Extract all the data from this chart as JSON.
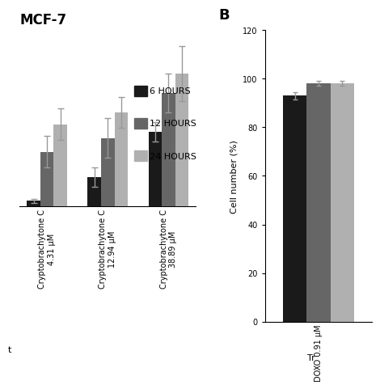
{
  "panel_A": {
    "title": "MCF-7",
    "categories": [
      "Cryptobrachytone C\n4.31 μM",
      "Cryptobrachytone C\n12.94 μM",
      "Cryptobrachytone C\n38.89 μM"
    ],
    "values_6h": [
      3,
      15,
      38
    ],
    "values_12h": [
      28,
      35,
      58
    ],
    "values_24h": [
      42,
      48,
      68
    ],
    "errors_6h": [
      1,
      5,
      5
    ],
    "errors_12h": [
      8,
      10,
      10
    ],
    "errors_24h": [
      8,
      8,
      14
    ],
    "color_6h": "#1a1a1a",
    "color_12h": "#666666",
    "color_24h": "#b0b0b0",
    "ylim": [
      0,
      90
    ],
    "ylabel": ""
  },
  "panel_B": {
    "label": "B",
    "categories": [
      "DOXO 0.91 μM"
    ],
    "values_6h": [
      93
    ],
    "values_12h": [
      98
    ],
    "values_24h": [
      98
    ],
    "errors_6h": [
      1.5
    ],
    "errors_12h": [
      1.0
    ],
    "errors_24h": [
      1.0
    ],
    "color_6h": "#1a1a1a",
    "color_12h": "#666666",
    "color_24h": "#b0b0b0",
    "ylim": [
      0,
      120
    ],
    "ylabel": "Cell number (%)",
    "xlabel": "Tr"
  },
  "legend": {
    "labels": [
      "6 HOURS",
      "12 HOURS",
      "24 HOURS"
    ],
    "colors": [
      "#1a1a1a",
      "#666666",
      "#b0b0b0"
    ]
  },
  "bar_width": 0.22,
  "background_color": "#ffffff",
  "fontsize_title": 12,
  "fontsize_labels": 8,
  "fontsize_ticks": 7,
  "fontsize_legend": 8
}
